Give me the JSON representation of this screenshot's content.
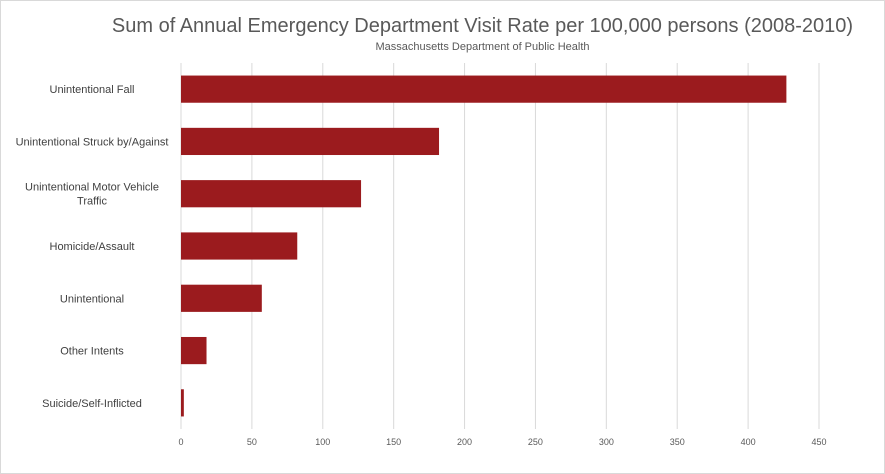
{
  "chart_data": {
    "type": "bar",
    "orientation": "horizontal",
    "title": "Sum of Annual Emergency Department Visit Rate per 100,000 persons (2008-2010)",
    "subtitle": "Massachusetts Department of Public Health",
    "categories": [
      "Unintentional Fall",
      "Unintentional Struck by/Against",
      "Unintentional Motor Vehicle Traffic",
      "Homicide/Assault",
      "Unintentional",
      "Other Intents",
      "Suicide/Self-Inflicted"
    ],
    "category_lines": [
      [
        "Unintentional Fall"
      ],
      [
        "Unintentional Struck by/Against"
      ],
      [
        "Unintentional Motor Vehicle",
        "Traffic"
      ],
      [
        "Homicide/Assault"
      ],
      [
        "Unintentional"
      ],
      [
        "Other Intents"
      ],
      [
        "Suicide/Self-Inflicted"
      ]
    ],
    "values": [
      427,
      182,
      127,
      82,
      57,
      18,
      2
    ],
    "xlim": [
      0,
      450
    ],
    "xticks": [
      0,
      50,
      100,
      150,
      200,
      250,
      300,
      350,
      400,
      450
    ],
    "xlabel": "",
    "ylabel": "",
    "grid": true,
    "legend": "none",
    "bar_color": "#9b1b1e",
    "grid_color": "#d9d9d9"
  }
}
